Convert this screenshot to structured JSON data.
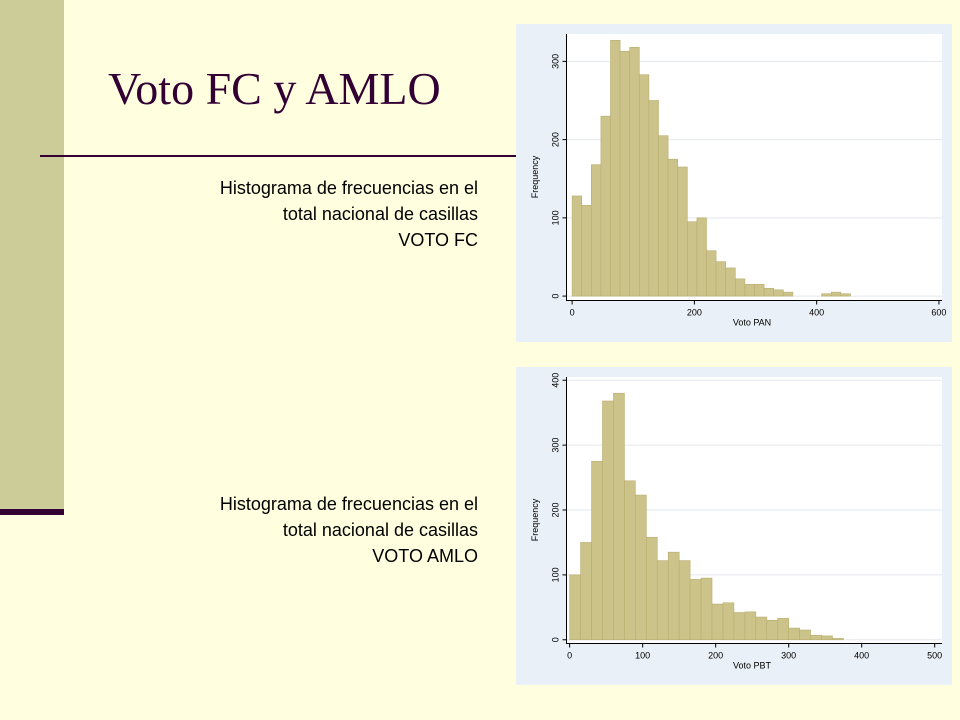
{
  "slide": {
    "title": "Voto FC y AMLO",
    "caption1": {
      "line1": "Histograma de frecuencias en el",
      "line2": "total nacional de casillas",
      "line3": "VOTO FC"
    },
    "caption2": {
      "line1": "Histograma de frecuencias en el",
      "line2": "total nacional de casillas",
      "line3": "VOTO AMLO"
    },
    "colors": {
      "background": "#FFFFE0",
      "accent_bar": "#CCCC99",
      "title": "#330033",
      "bar_fill": "#CCC38A",
      "bar_stroke": "#B8AD6E",
      "panel": "#EAF0F7"
    }
  },
  "chart_data": [
    {
      "type": "bar",
      "title": "",
      "xlabel": "Voto PAN",
      "ylabel": "Frequency",
      "xlim": [
        -10,
        605
      ],
      "ylim": [
        -5,
        335
      ],
      "x_ticks": [
        0,
        200,
        400,
        600
      ],
      "y_ticks": [
        0,
        100,
        200,
        300
      ],
      "grid": true,
      "bin_width": 15.7,
      "bin_starts": [
        0,
        15.7,
        31.4,
        47.1,
        62.8,
        78.5,
        94.2,
        109.9,
        125.6,
        141.3,
        157,
        172.7,
        188.4,
        204.1,
        219.8,
        235.5,
        251.2,
        266.9,
        282.6,
        298.3,
        314,
        329.7,
        345.4,
        361.1,
        376.8,
        392.5,
        408.2,
        423.9,
        439.6
      ],
      "values": [
        128,
        116,
        168,
        230,
        327,
        313,
        318,
        283,
        250,
        205,
        175,
        165,
        95,
        100,
        58,
        44,
        36,
        22,
        15,
        15,
        10,
        8,
        5,
        0,
        0,
        0,
        3,
        5,
        3
      ]
    },
    {
      "type": "bar",
      "title": "",
      "xlabel": "Voto PBT",
      "ylabel": "Frequency",
      "xlim": [
        -5,
        510
      ],
      "ylim": [
        -5,
        405
      ],
      "x_ticks": [
        0,
        100,
        200,
        300,
        400,
        500
      ],
      "y_ticks": [
        0,
        100,
        200,
        300,
        400
      ],
      "grid": true,
      "bin_width": 15,
      "bin_starts": [
        0,
        15,
        30,
        45,
        60,
        75,
        90,
        105,
        120,
        135,
        150,
        165,
        180,
        195,
        210,
        225,
        240,
        255,
        270,
        285,
        300,
        315,
        330,
        345,
        360
      ],
      "values": [
        100,
        150,
        275,
        368,
        380,
        245,
        223,
        158,
        122,
        135,
        122,
        93,
        95,
        55,
        57,
        42,
        43,
        35,
        30,
        33,
        18,
        15,
        7,
        6,
        2
      ]
    }
  ]
}
